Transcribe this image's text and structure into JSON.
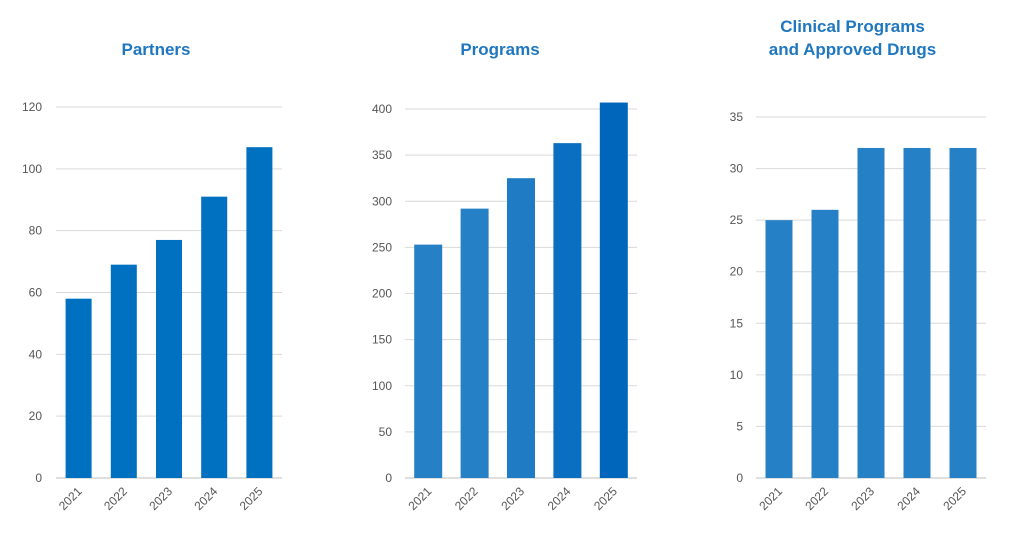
{
  "chart_data": [
    {
      "type": "bar",
      "title_lines": [
        "Partners"
      ],
      "categories": [
        "2021",
        "2022",
        "2023",
        "2024",
        "2025"
      ],
      "values": [
        58,
        69,
        77,
        91,
        107
      ],
      "ylim": [
        0,
        120
      ],
      "yticks": [
        0,
        20,
        40,
        60,
        80,
        100,
        120
      ],
      "grid": true,
      "bar_color": "#0070c0"
    },
    {
      "type": "bar",
      "title_lines": [
        "Programs"
      ],
      "categories": [
        "2021",
        "2022",
        "2023",
        "2024",
        "2025"
      ],
      "values": [
        253,
        292,
        325,
        363,
        407
      ],
      "ylim": [
        0,
        410
      ],
      "yticks": [
        0,
        50,
        100,
        150,
        200,
        250,
        300,
        350,
        400
      ],
      "grid": true,
      "bar_color": "#1f7cc4",
      "bar_colors": [
        "#2680c6",
        "#2680c6",
        "#1f7cc4",
        "#0a6fc0",
        "#0066bb"
      ]
    },
    {
      "type": "bar",
      "title_lines": [
        "Clinical Programs",
        "and Approved Drugs"
      ],
      "categories": [
        "2021",
        "2022",
        "2023",
        "2024",
        "2025"
      ],
      "values": [
        25,
        26,
        32,
        32,
        32
      ],
      "ylim": [
        0,
        35
      ],
      "yticks": [
        0,
        5,
        10,
        15,
        20,
        25,
        30,
        35
      ],
      "grid": true,
      "bar_color": "#2680c6"
    }
  ]
}
